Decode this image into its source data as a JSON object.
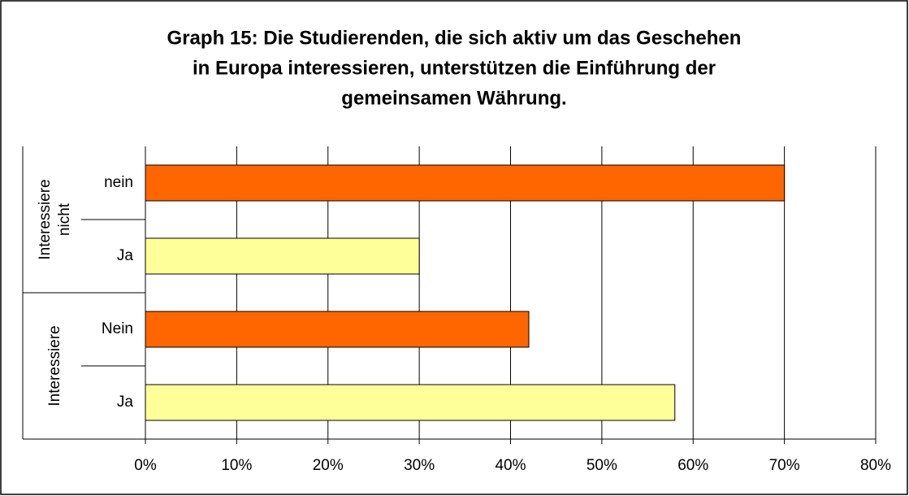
{
  "chart_data": {
    "type": "bar",
    "orientation": "horizontal",
    "title": [
      "Graph 15: Die Studierenden, die sich aktiv um das Geschehen",
      "in Europa interessieren, unterstützen die Einführung der",
      "gemeinsamen Währung."
    ],
    "groups": [
      {
        "label": [
          "Interessiere",
          "nicht"
        ],
        "size": 2
      },
      {
        "label": [
          "Interessiere"
        ],
        "size": 2
      }
    ],
    "categories": [
      "nein",
      "Ja",
      "Nein",
      "Ja"
    ],
    "values": [
      70,
      30,
      42,
      58
    ],
    "colors": [
      "#ff6600",
      "#ffff99",
      "#ff6600",
      "#ffff99"
    ],
    "xlim": [
      0,
      80
    ],
    "xticks": [
      {
        "value": 0,
        "label": "0%"
      },
      {
        "value": 10,
        "label": "10%"
      },
      {
        "value": 20,
        "label": "20%"
      },
      {
        "value": 30,
        "label": "30%"
      },
      {
        "value": 40,
        "label": "40%"
      },
      {
        "value": 50,
        "label": "50%"
      },
      {
        "value": 60,
        "label": "60%"
      },
      {
        "value": 70,
        "label": "70%"
      },
      {
        "value": 80,
        "label": "80%"
      }
    ],
    "grid": true
  }
}
